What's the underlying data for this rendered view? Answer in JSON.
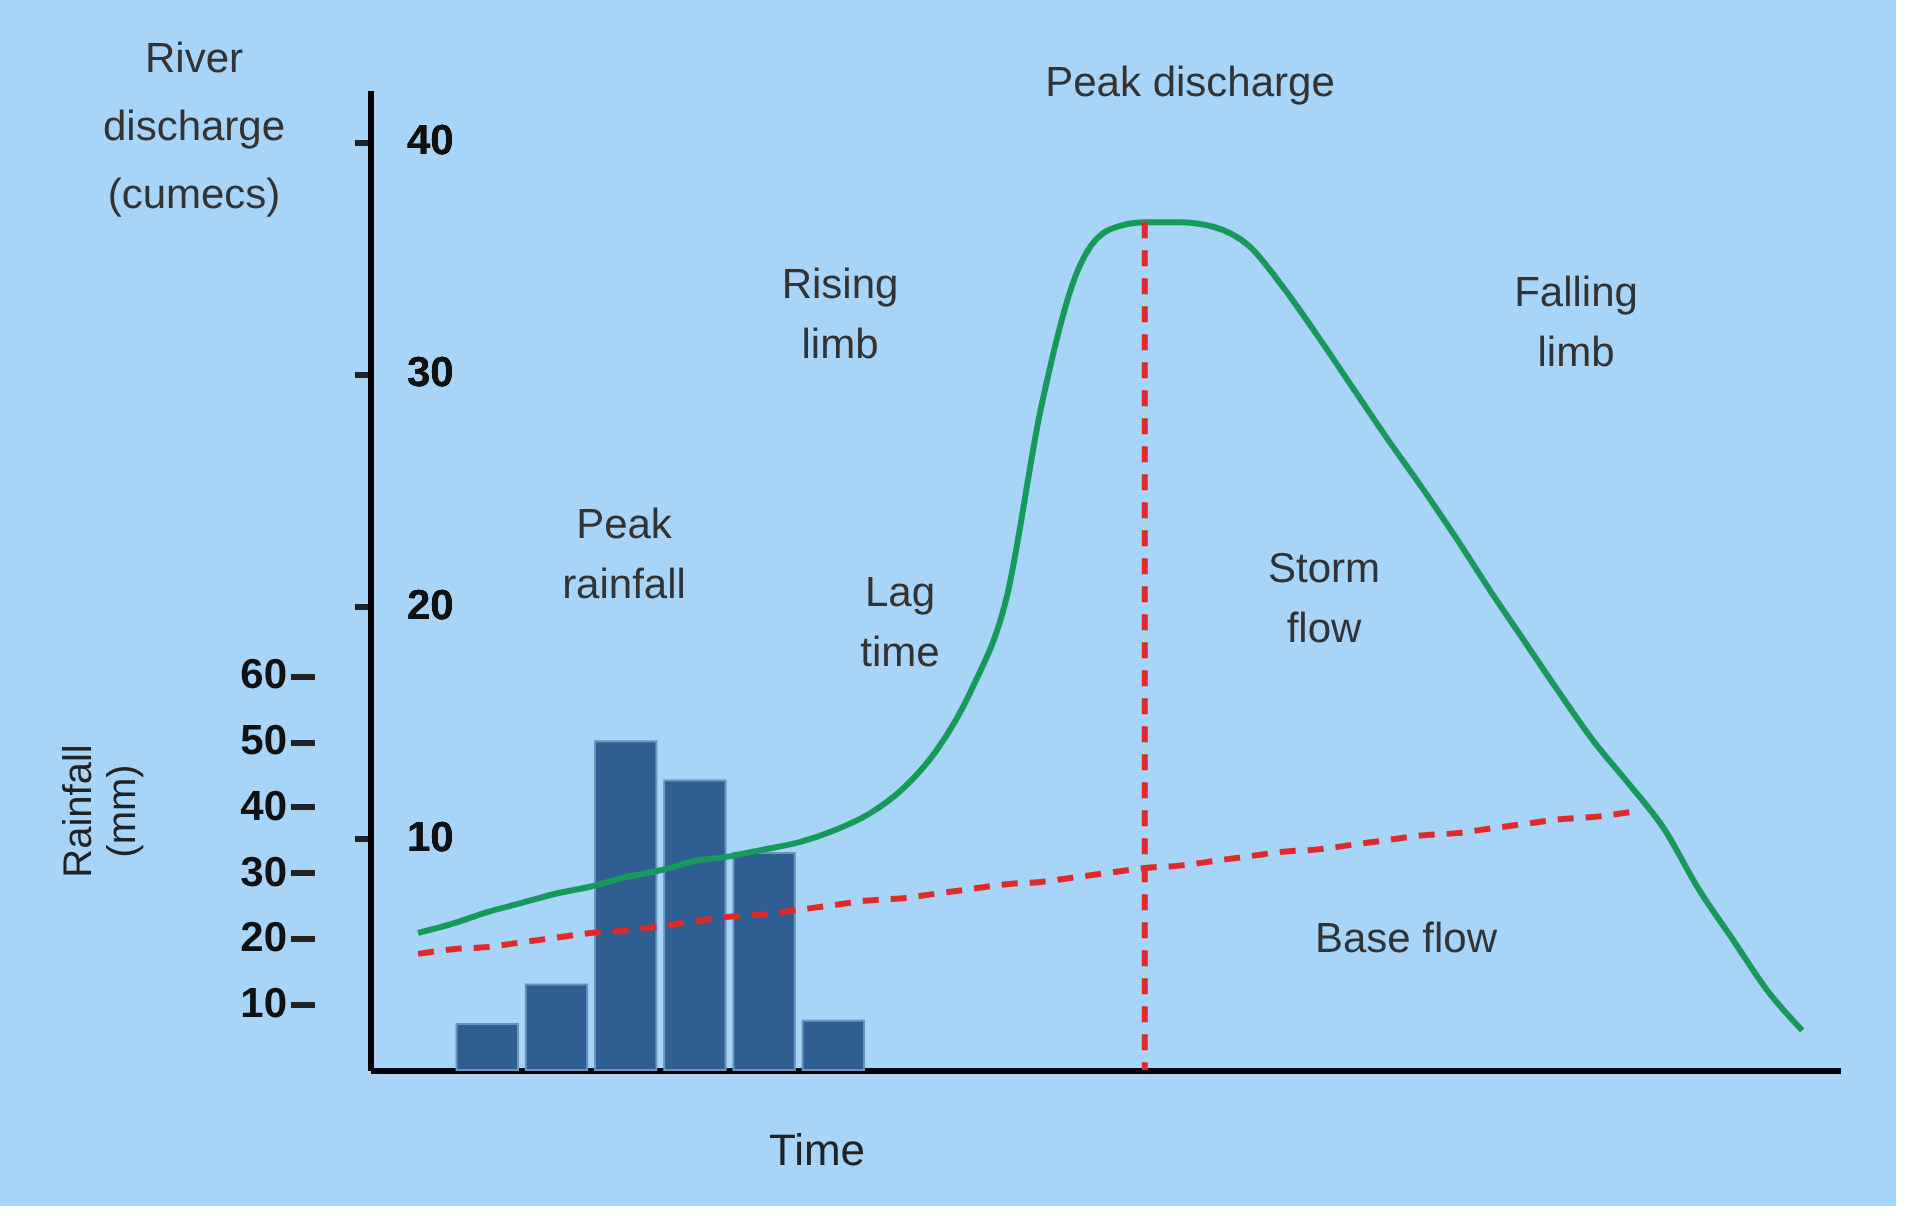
{
  "chart_data": {
    "type": "bar",
    "xlabel": "Time",
    "y2label": "Rainfall (mm)",
    "categories": [
      null,
      null,
      null,
      null,
      null,
      null,
      null,
      null,
      null,
      null,
      null,
      null,
      null,
      null,
      null,
      null,
      null,
      null,
      null,
      null,
      null,
      null,
      null,
      null,
      null,
      null,
      null,
      null,
      null,
      null,
      null,
      null,
      null,
      null,
      null,
      null,
      null,
      null,
      null,
      null,
      null
    ],
    "series": [
      {
        "axis": "y2",
        "color": "#2f5f92",
        "values": [
          null,
          null,
          7,
          null,
          13,
          null,
          50,
          null,
          44,
          null,
          33,
          null,
          7.5,
          null,
          null,
          null,
          null,
          null,
          null,
          null,
          null,
          null,
          null,
          null,
          null,
          null,
          null,
          null,
          null,
          null,
          null,
          null,
          null,
          null,
          null,
          null,
          null,
          null,
          null,
          null,
          null
        ]
      },
      {
        "type": "line",
        "color": "#e02a2a",
        "line_style": "dashed",
        "values": [
          5.0,
          5.2,
          5.3,
          5.5,
          5.7,
          5.9,
          6.0,
          6.2,
          6.4,
          6.6,
          6.7,
          6.9,
          7.1,
          7.3,
          7.4,
          7.6,
          7.8,
          8.0,
          8.1,
          8.3,
          8.5,
          8.7,
          8.8,
          9.0,
          9.2,
          9.4,
          9.5,
          9.7,
          9.9,
          10.1,
          10.2,
          10.4,
          10.6,
          10.8,
          10.9,
          11.1,
          null,
          null,
          null,
          null,
          null
        ]
      },
      {
        "type": "line",
        "color": "#16995a",
        "line_style": "solid",
        "values": [
          5.9,
          6.3,
          6.8,
          7.2,
          7.6,
          7.9,
          8.3,
          8.6,
          9.0,
          9.2,
          9.5,
          9.8,
          10.3,
          11.0,
          12.1,
          13.8,
          16.4,
          20.3,
          28.5,
          34.2,
          36.2,
          36.5,
          36.5,
          36.3,
          35.5,
          33.7,
          31.6,
          29.4,
          27.2,
          25.1,
          22.9,
          20.6,
          18.4,
          16.2,
          14.1,
          12.3,
          10.4,
          7.8,
          5.6,
          3.4,
          1.7
        ]
      }
    ],
    "ylim": [
      0,
      42.2
    ],
    "yticks": [
      10,
      20,
      30,
      40
    ],
    "y2lim": [
      0,
      149
    ],
    "y2ticks": [
      10,
      20,
      30,
      40,
      50,
      60
    ],
    "annotations": [
      "River discharge (cumecs)",
      "Peak discharge",
      "Rising limb",
      "Falling limb",
      "Peak rainfall",
      "Lag time",
      "Storm flow",
      "Base flow"
    ],
    "tick_labels": "y",
    "grid": false,
    "marker": "none"
  }
}
